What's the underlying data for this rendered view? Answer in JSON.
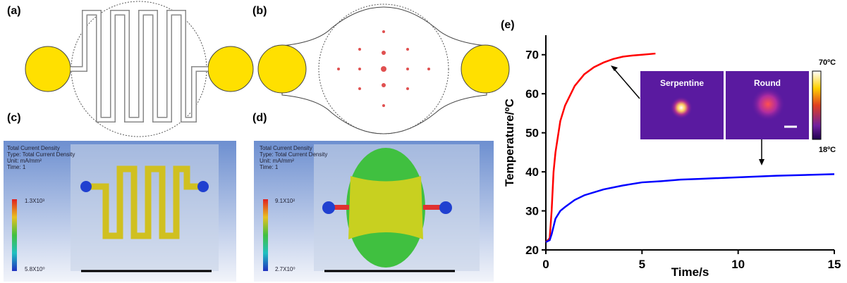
{
  "panels": {
    "a": "(a)",
    "b": "(b)",
    "c": "(c)",
    "d": "(d)",
    "e": "(e)"
  },
  "sim_c": {
    "lines": [
      "Total Current Density",
      "Type: Total Current Density",
      "Unit: mA/mm²",
      "Time: 1"
    ],
    "max": "1.3X10³",
    "min": "5.8X10⁰"
  },
  "sim_d": {
    "lines": [
      "Total Current Density",
      "Type: Total Current Density",
      "Unit: mA/mm²",
      "Time: 1"
    ],
    "max": "9.1X10²",
    "min": "2.7X10⁰"
  },
  "chart_data": {
    "type": "line",
    "xlabel": "Time/s",
    "ylabel": "Temperature/ºC",
    "xlim": [
      0,
      15
    ],
    "ylim": [
      20,
      75
    ],
    "xticks": [
      0,
      5,
      10,
      15
    ],
    "yticks": [
      20,
      30,
      40,
      50,
      60,
      70
    ],
    "series": [
      {
        "color": "#ff0000",
        "x": [
          0,
          0.2,
          0.3,
          0.4,
          0.5,
          0.75,
          1,
          1.5,
          2,
          2.5,
          3,
          3.5,
          4,
          4.5,
          5,
          5.7
        ],
        "values": [
          22,
          23,
          30,
          40,
          45,
          53,
          57,
          62,
          65,
          66.8,
          68,
          68.9,
          69.5,
          69.8,
          70,
          70.3
        ]
      },
      {
        "color": "#0000ff",
        "x": [
          0,
          0.2,
          0.3,
          0.5,
          0.75,
          1,
          1.5,
          2,
          3,
          4,
          5,
          6,
          7,
          8,
          10,
          12,
          15
        ],
        "values": [
          22,
          22.5,
          24,
          28,
          30,
          31,
          32.8,
          34,
          35.5,
          36.5,
          37.3,
          37.6,
          38,
          38.2,
          38.6,
          39,
          39.4
        ]
      }
    ],
    "annotations": {
      "serpentine": "Serpentine",
      "round": "Round",
      "max": "70ºC",
      "min": "18ºC"
    }
  }
}
